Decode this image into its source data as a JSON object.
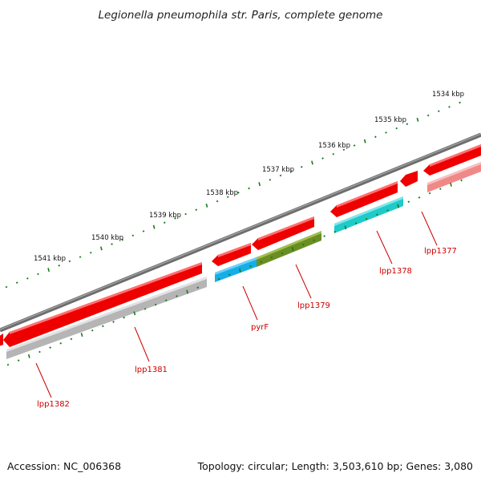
{
  "title": "Legionella pneumophila str. Paris, complete genome",
  "footer": {
    "accession": "Accession: NC_006368",
    "summary": "Topology: circular; Length: 3,503,610 bp; Genes: 3,080"
  },
  "scale": {
    "unit": "kbp",
    "labels": [
      "1534 kbp",
      "1535 kbp",
      "1536 kbp",
      "1537 kbp",
      "1538 kbp",
      "1539 kbp",
      "1540 kbp",
      "1541 kbp"
    ]
  },
  "genes": [
    {
      "name": "lpp1377",
      "strand": "reverse",
      "color": "#ff0000",
      "cog_color": "#f08080"
    },
    {
      "name": "lpp1378",
      "strand": "reverse",
      "color": "#ff0000",
      "cog_color": "#22d3d3"
    },
    {
      "name": "lpp1379",
      "strand": "reverse",
      "color": "#ff0000",
      "cog_color": "#6b8e23"
    },
    {
      "name": "pyrF",
      "strand": "reverse",
      "color": "#ff0000",
      "cog_color": "#1fb5ee"
    },
    {
      "name": "lpp1381",
      "strand": "reverse",
      "color": "#ff0000",
      "cog_color": "#b8b8b8"
    },
    {
      "name": "lpp1382",
      "strand": "reverse",
      "color": "#ff0000",
      "cog_color": "#b8b8b8"
    }
  ],
  "colors": {
    "backbone": "#808080",
    "tick_outer": "#1a7a1a",
    "tick_inner": "#1a7a1a",
    "label": "#cc0000"
  }
}
